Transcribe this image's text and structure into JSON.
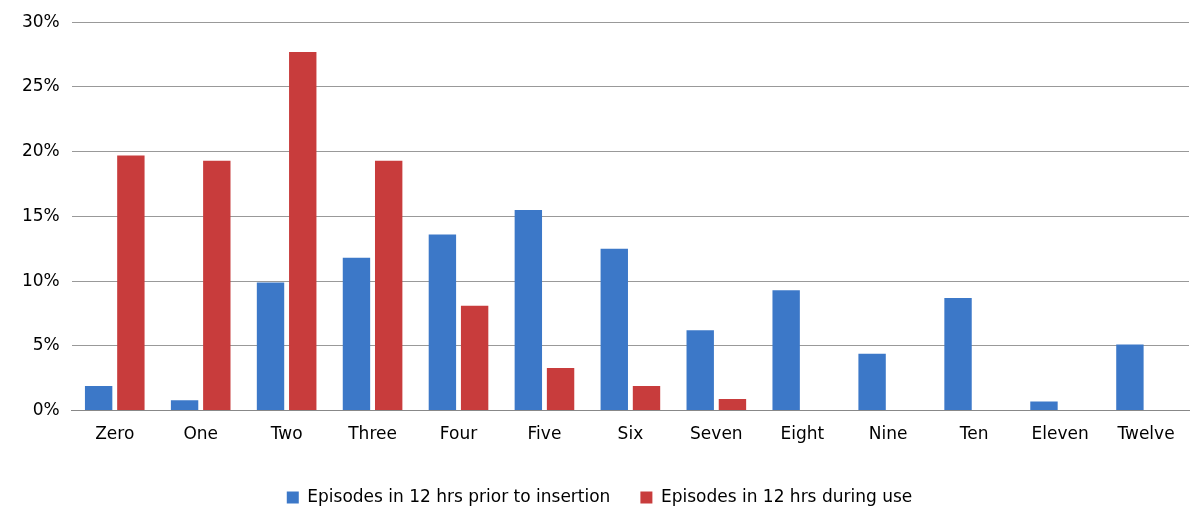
{
  "chart_data": {
    "type": "bar",
    "categories": [
      "Zero",
      "One",
      "Two",
      "Three",
      "Four",
      "Five",
      "Six",
      "Seven",
      "Eight",
      "Nine",
      "Ten",
      "Eleven",
      "Twelve"
    ],
    "series": [
      {
        "name": "Episodes in 12 hrs prior to insertion",
        "color": "#3c78c8",
        "values": [
          1.9,
          0.8,
          9.9,
          11.8,
          13.6,
          15.5,
          12.5,
          6.2,
          9.3,
          4.4,
          8.7,
          0.7,
          5.1
        ]
      },
      {
        "name": "Episodes in 12 hrs during use",
        "color": "#c83c3c",
        "values": [
          19.7,
          19.3,
          27.7,
          19.3,
          8.1,
          3.3,
          1.9,
          0.9,
          null,
          null,
          null,
          null,
          null
        ]
      }
    ],
    "ylim": [
      0,
      30
    ],
    "yticks": [
      {
        "value": 0,
        "label": "0%"
      },
      {
        "value": 5,
        "label": "5%"
      },
      {
        "value": 10,
        "label": "10%"
      },
      {
        "value": 15,
        "label": "15%"
      },
      {
        "value": 20,
        "label": "20%"
      },
      {
        "value": 25,
        "label": "25%"
      },
      {
        "value": 30,
        "label": "30%"
      }
    ],
    "grid": "y",
    "legend": "bottom"
  }
}
